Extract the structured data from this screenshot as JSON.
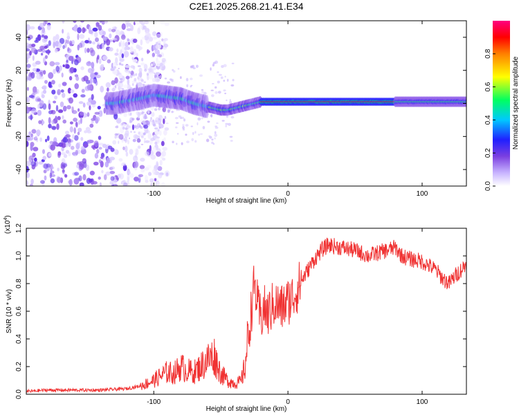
{
  "figure": {
    "title": "C2E1.2025.268.21.41.E34"
  },
  "chart_data": [
    {
      "type": "heatmap",
      "title": "C2E1.2025.268.21.41.E34",
      "xlabel": "Height of straight line (km)",
      "ylabel": "Frequency (Hz)",
      "xlim": [
        -195,
        133
      ],
      "ylim": [
        -50,
        50
      ],
      "xticks": [
        -100,
        0,
        100
      ],
      "yticks": [
        -40,
        -20,
        0,
        20,
        40
      ],
      "colorbar": {
        "label": "Normalized spectral amplitude",
        "range": [
          0,
          1
        ],
        "ticks": [
          0.0,
          0.2,
          0.4,
          0.6,
          0.8
        ],
        "colormap": [
          "#ffffff",
          "#c8b4ff",
          "#7b3fe0",
          "#2020ff",
          "#00c8ff",
          "#00ff60",
          "#ffff00",
          "#ff8000",
          "#ff0000",
          "#ff0080"
        ]
      },
      "ridge": {
        "x": [
          -130,
          -110,
          -100,
          -90,
          -80,
          -70,
          -60,
          -55,
          -50,
          -45,
          -40,
          -35,
          -30,
          -25,
          -20,
          -10,
          0,
          10,
          50,
          100,
          133
        ],
        "freq": [
          0,
          3,
          5,
          4,
          3,
          0,
          -2,
          -3,
          -4,
          -4,
          -3,
          -2,
          -1,
          0,
          1,
          1,
          1,
          1,
          1,
          1,
          1
        ]
      },
      "noise_region": {
        "x_start": -195,
        "x_end": -110,
        "freq_range": [
          -50,
          50
        ]
      }
    },
    {
      "type": "line",
      "xlabel": "Height of straight line (km)",
      "ylabel": "SNR (10 * v/v)",
      "multiplier": "(x10",
      "multiplier_exp": "4",
      "multiplier_close": ")",
      "xlim": [
        -195,
        133
      ],
      "ylim": [
        0.0,
        1.2
      ],
      "xticks": [
        -100,
        0,
        100
      ],
      "yticks": [
        0.0,
        0.2,
        0.4,
        0.6,
        0.8,
        1.0,
        1.2
      ],
      "series": [
        {
          "name": "SNR",
          "color": "#f03232",
          "x": [
            -195,
            -180,
            -160,
            -140,
            -120,
            -110,
            -100,
            -95,
            -90,
            -85,
            -80,
            -75,
            -70,
            -65,
            -60,
            -55,
            -50,
            -45,
            -40,
            -35,
            -32,
            -30,
            -28,
            -25,
            -22,
            -20,
            -18,
            -15,
            -10,
            -5,
            0,
            5,
            10,
            15,
            20,
            25,
            30,
            40,
            50,
            60,
            70,
            80,
            85,
            90,
            100,
            110,
            115,
            120,
            125,
            133
          ],
          "y": [
            0.02,
            0.03,
            0.03,
            0.03,
            0.04,
            0.06,
            0.1,
            0.13,
            0.16,
            0.15,
            0.2,
            0.17,
            0.16,
            0.2,
            0.25,
            0.28,
            0.15,
            0.1,
            0.08,
            0.09,
            0.2,
            0.38,
            0.55,
            0.8,
            0.6,
            0.55,
            0.62,
            0.58,
            0.66,
            0.62,
            0.67,
            0.72,
            0.82,
            0.9,
            0.98,
            1.04,
            1.08,
            1.06,
            1.04,
            1.0,
            1.03,
            1.06,
            1.0,
            0.98,
            0.96,
            0.9,
            0.84,
            0.8,
            0.86,
            0.94
          ]
        }
      ]
    }
  ]
}
